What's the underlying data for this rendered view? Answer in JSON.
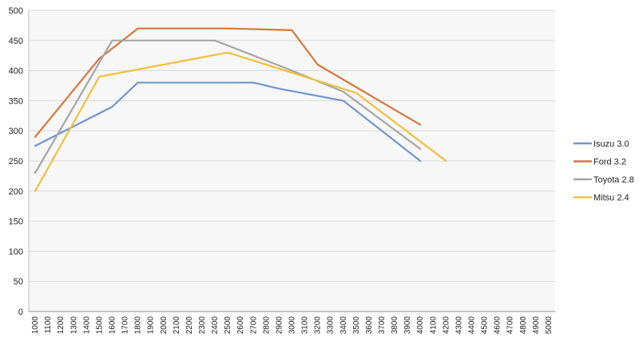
{
  "chart_data": {
    "type": "line",
    "title": "",
    "xlabel": "",
    "ylabel": "",
    "categories": [
      "1000",
      "1100",
      "1200",
      "1300",
      "1400",
      "1500",
      "1600",
      "1700",
      "1800",
      "1900",
      "2000",
      "2100",
      "2200",
      "2300",
      "2400",
      "2500",
      "2600",
      "2700",
      "2800",
      "2900",
      "3000",
      "3100",
      "3200",
      "3300",
      "3400",
      "3500",
      "3600",
      "3700",
      "3800",
      "3900",
      "4000",
      "4100",
      "4200",
      "4300",
      "4400",
      "4500",
      "4600",
      "4700",
      "4800",
      "4900",
      "5000"
    ],
    "ylim": [
      0,
      500
    ],
    "yticks": [
      "0",
      "50",
      "100",
      "150",
      "200",
      "250",
      "300",
      "350",
      "400",
      "450",
      "500"
    ],
    "grid": true,
    "legend_position": "right",
    "series": [
      {
        "name": "Isuzu 3.0",
        "color": "#7096cc",
        "points": [
          [
            0,
            275
          ],
          [
            6,
            340
          ],
          [
            8,
            380
          ],
          [
            17,
            380
          ],
          [
            19,
            370
          ],
          [
            24,
            350
          ],
          [
            30,
            250
          ]
        ]
      },
      {
        "name": "Ford 3.2",
        "color": "#d6773a",
        "points": [
          [
            0,
            290
          ],
          [
            5,
            420
          ],
          [
            8,
            470
          ],
          [
            15,
            470
          ],
          [
            20,
            467
          ],
          [
            22,
            410
          ],
          [
            30,
            310
          ]
        ]
      },
      {
        "name": "Toyota 2.8",
        "color": "#a6a6a6",
        "points": [
          [
            0,
            230
          ],
          [
            6,
            450
          ],
          [
            14,
            450
          ],
          [
            20,
            400
          ],
          [
            24,
            365
          ],
          [
            30,
            270
          ]
        ]
      },
      {
        "name": "Mitsu 2.4",
        "color": "#f0c03c",
        "points": [
          [
            0,
            200
          ],
          [
            5,
            390
          ],
          [
            15,
            430
          ],
          [
            25,
            363
          ],
          [
            32,
            250
          ]
        ]
      }
    ]
  }
}
